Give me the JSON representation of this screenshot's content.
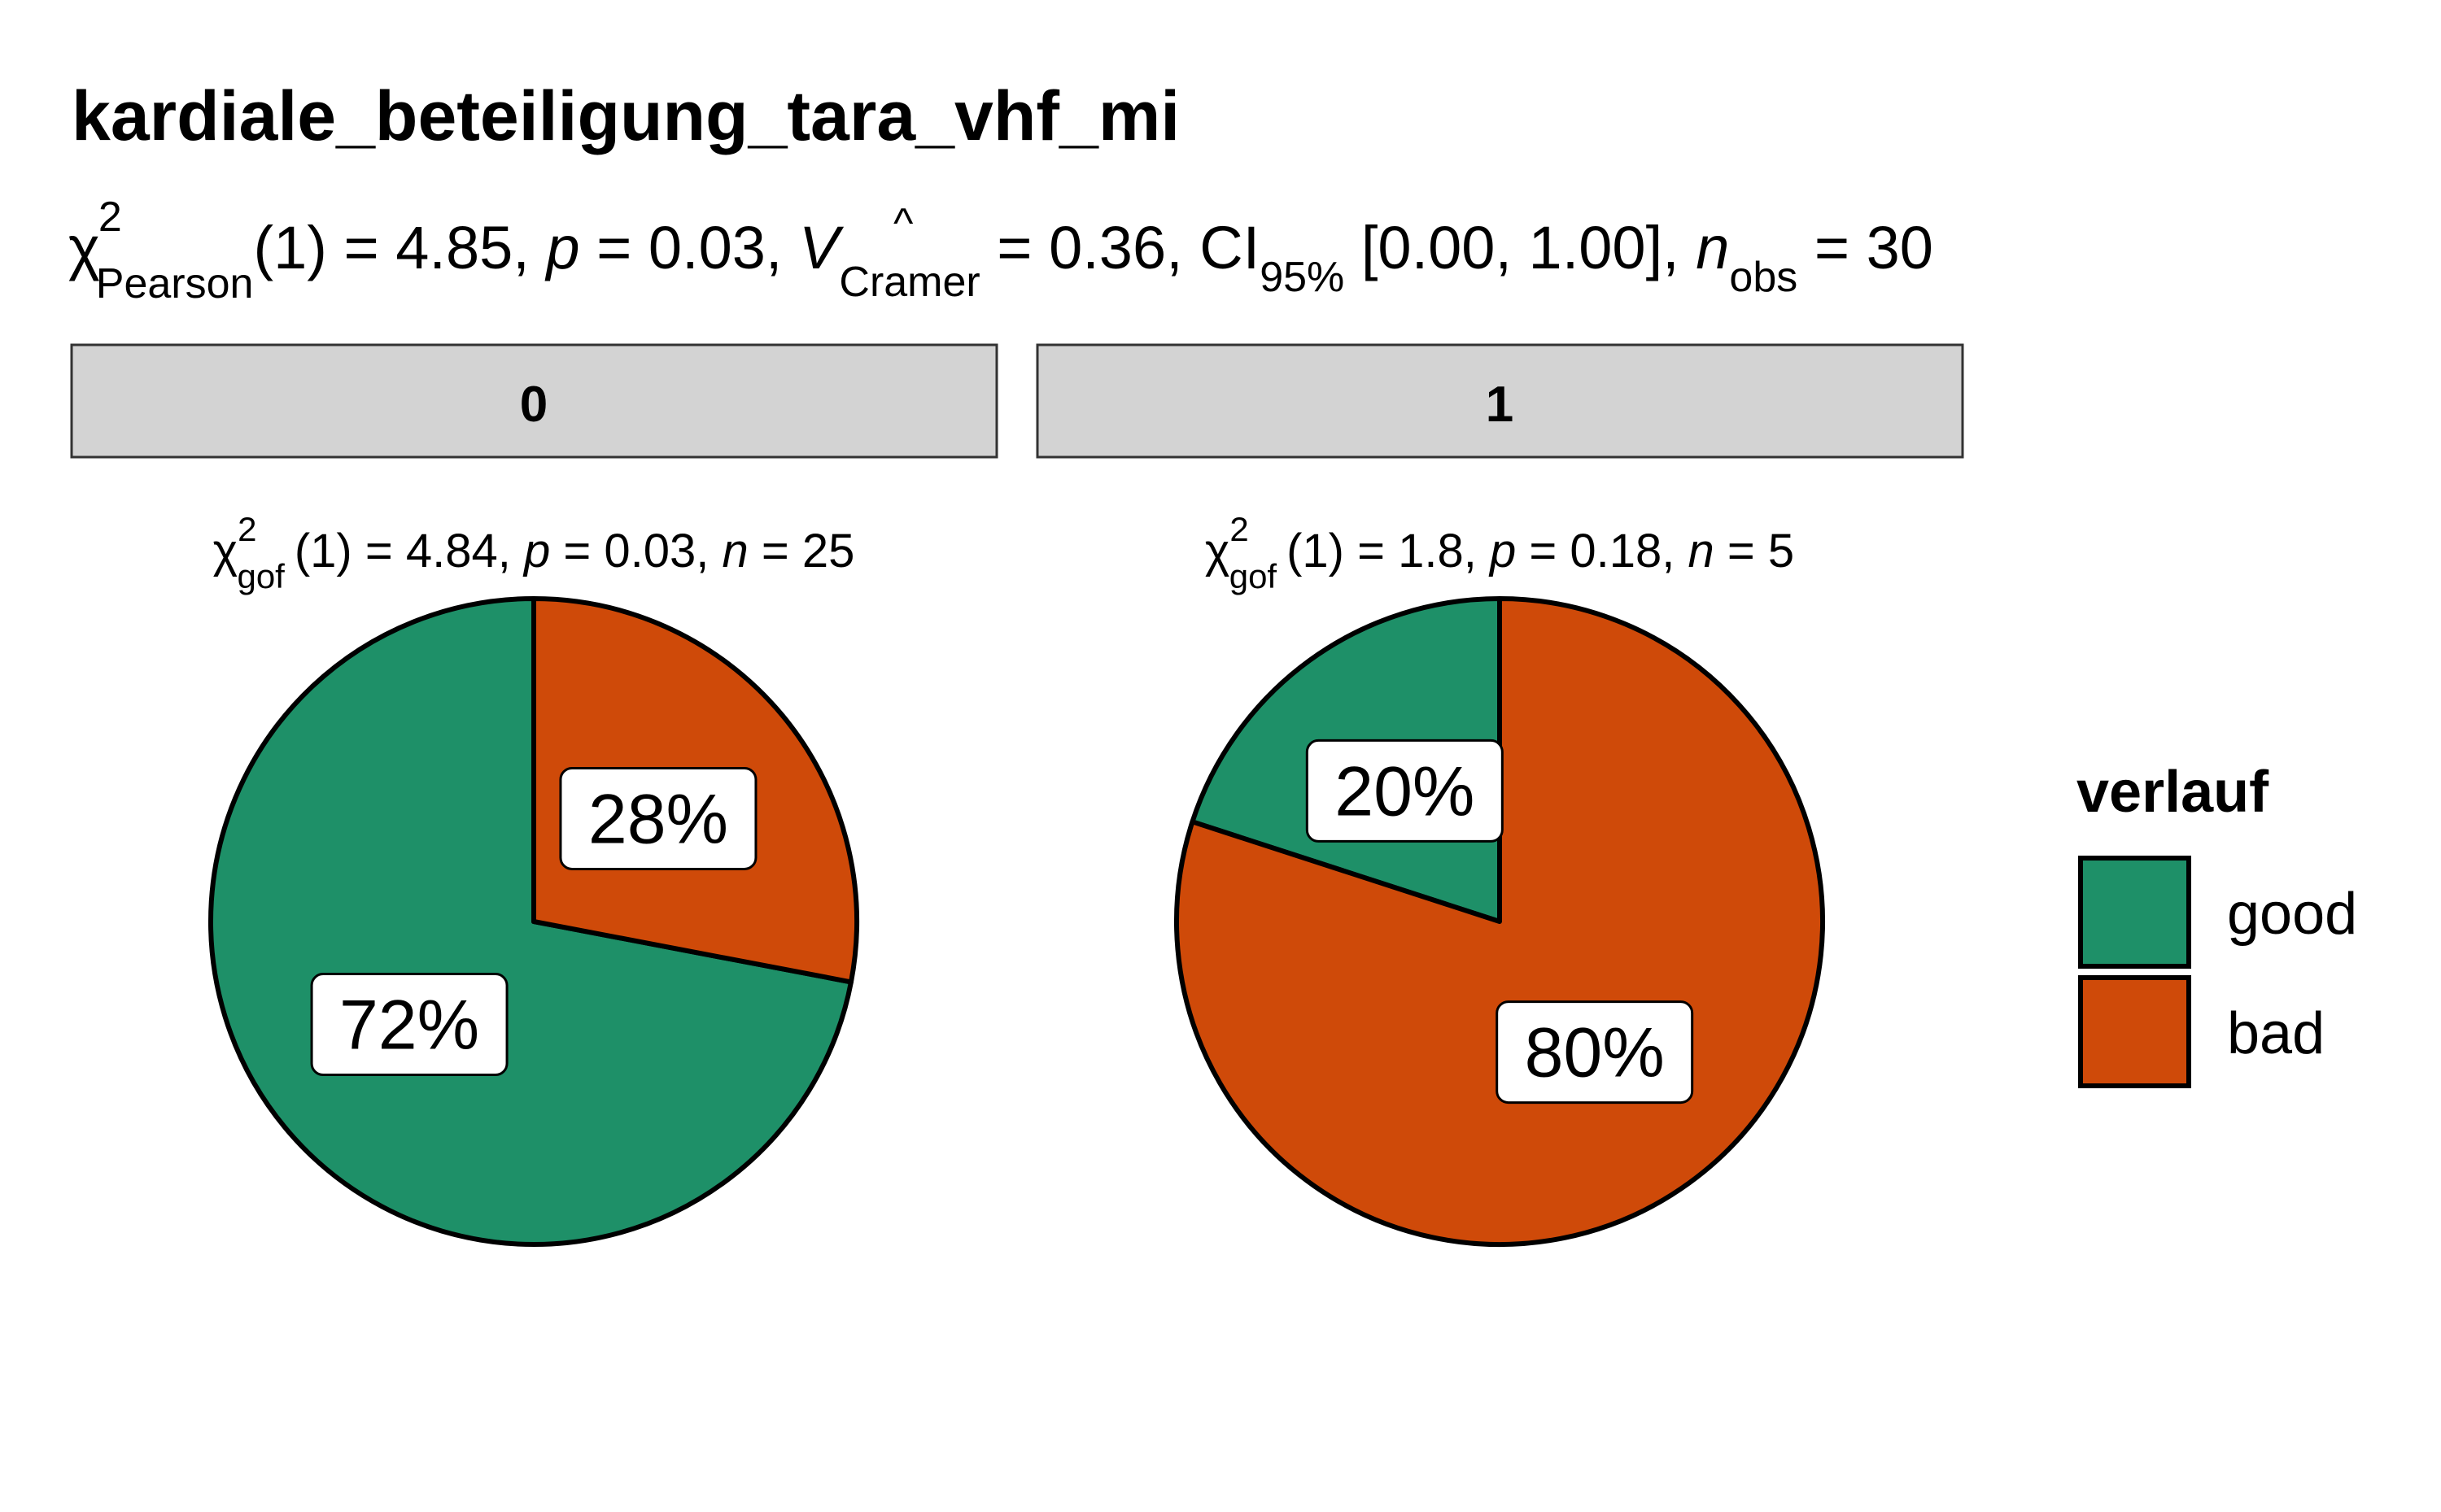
{
  "chart_data": {
    "type": "pie",
    "title": "kardiale_beteiligung_tara_vhf_mi",
    "subtitle": {
      "chi": "χ",
      "sup": "2",
      "test_name": "Pearson",
      "df": "(1)",
      "stat": " = 4.85, ",
      "p_sym": "p",
      "p_val": " = 0.03, ",
      "v_sym": "V",
      "v_hat": "^",
      "v_sub": "Cramer",
      "v_val": " = 0.36, CI",
      "ci_sub": "95%",
      "ci_val": " [0.00, 1.00], ",
      "n_sym": "n",
      "n_sub": "obs",
      "n_val": " = 30"
    },
    "categories": [
      "good",
      "bad"
    ],
    "colors": {
      "good": "#1E9068",
      "bad": "#CF4A09"
    },
    "legend": {
      "title": "verlauf",
      "position": "right"
    },
    "facets": [
      {
        "strip": "0",
        "stat": {
          "chi": "χ",
          "sup": "2",
          "sub": "gof",
          "df": "(1)",
          "stat": " = 4.84,  ",
          "p_sym": "p",
          "p_val": " = 0.03,  ",
          "n_sym": "n",
          "n_val": " = 25"
        },
        "values": [
          72,
          28
        ],
        "labels": [
          "72%",
          "28%"
        ]
      },
      {
        "strip": "1",
        "stat": {
          "chi": "χ",
          "sup": "2",
          "sub": "gof",
          "df": "(1)",
          "stat": " = 1.8,  ",
          "p_sym": "p",
          "p_val": " = 0.18,  ",
          "n_sym": "n",
          "n_val": " = 5"
        },
        "values": [
          20,
          80
        ],
        "labels": [
          "20%",
          "80%"
        ]
      }
    ]
  }
}
